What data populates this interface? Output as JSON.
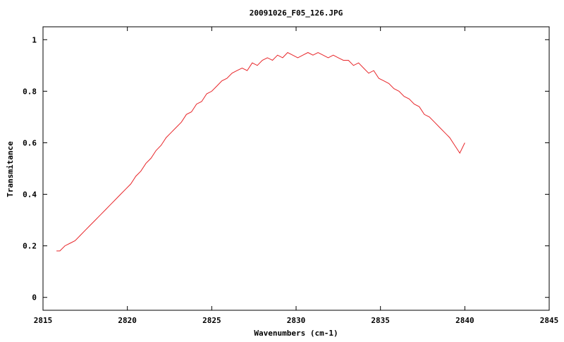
{
  "chart_data": {
    "type": "line",
    "title": "20091026_F05_126.JPG",
    "xlabel": "Wavenumbers (cm-1)",
    "ylabel": "Transmitance",
    "xlim": [
      2815,
      2845
    ],
    "ylim": [
      -0.05,
      1.05
    ],
    "xticks": [
      2815,
      2820,
      2825,
      2830,
      2835,
      2840,
      2845
    ],
    "yticks": [
      0,
      0.2,
      0.4,
      0.6,
      0.8,
      1
    ],
    "ytick_labels": [
      "0",
      "0.2",
      "0.4",
      "0.6",
      "0.8",
      "1"
    ],
    "grid": false,
    "series_color": "#e8262a",
    "series": [
      {
        "x": [
          2815.8,
          2816.0,
          2816.3,
          2816.6,
          2816.9,
          2817.2,
          2817.5,
          2817.8,
          2818.1,
          2818.4,
          2818.7,
          2819.0,
          2819.3,
          2819.6,
          2819.9,
          2820.2,
          2820.5,
          2820.8,
          2821.1,
          2821.4,
          2821.7,
          2822.0,
          2822.3,
          2822.6,
          2822.9,
          2823.2,
          2823.5,
          2823.8,
          2824.1,
          2824.4,
          2824.7,
          2825.0,
          2825.3,
          2825.6,
          2825.9,
          2826.2,
          2826.5,
          2826.8,
          2827.1,
          2827.4,
          2827.7,
          2828.0,
          2828.3,
          2828.6,
          2828.9,
          2829.2,
          2829.5,
          2829.8,
          2830.1,
          2830.4,
          2830.7,
          2831.0,
          2831.3,
          2831.6,
          2831.9,
          2832.2,
          2832.5,
          2832.8,
          2833.1,
          2833.4,
          2833.7,
          2834.0,
          2834.3,
          2834.6,
          2834.9,
          2835.2,
          2835.5,
          2835.8,
          2836.1,
          2836.4,
          2836.7,
          2837.0,
          2837.3,
          2837.6,
          2837.9,
          2838.2,
          2838.5,
          2838.8,
          2839.1,
          2839.4,
          2839.7,
          2840.0
        ],
        "values": [
          0.18,
          0.18,
          0.2,
          0.21,
          0.22,
          0.24,
          0.26,
          0.28,
          0.3,
          0.32,
          0.34,
          0.36,
          0.38,
          0.4,
          0.42,
          0.44,
          0.47,
          0.49,
          0.52,
          0.54,
          0.57,
          0.59,
          0.62,
          0.64,
          0.66,
          0.68,
          0.71,
          0.72,
          0.75,
          0.76,
          0.79,
          0.8,
          0.82,
          0.84,
          0.85,
          0.87,
          0.88,
          0.89,
          0.88,
          0.91,
          0.9,
          0.92,
          0.93,
          0.92,
          0.94,
          0.93,
          0.95,
          0.94,
          0.93,
          0.94,
          0.95,
          0.94,
          0.95,
          0.94,
          0.93,
          0.94,
          0.93,
          0.92,
          0.92,
          0.9,
          0.91,
          0.89,
          0.87,
          0.88,
          0.85,
          0.84,
          0.83,
          0.81,
          0.8,
          0.78,
          0.77,
          0.75,
          0.74,
          0.71,
          0.7,
          0.68,
          0.66,
          0.64,
          0.62,
          0.59,
          0.56,
          0.6
        ]
      }
    ]
  }
}
